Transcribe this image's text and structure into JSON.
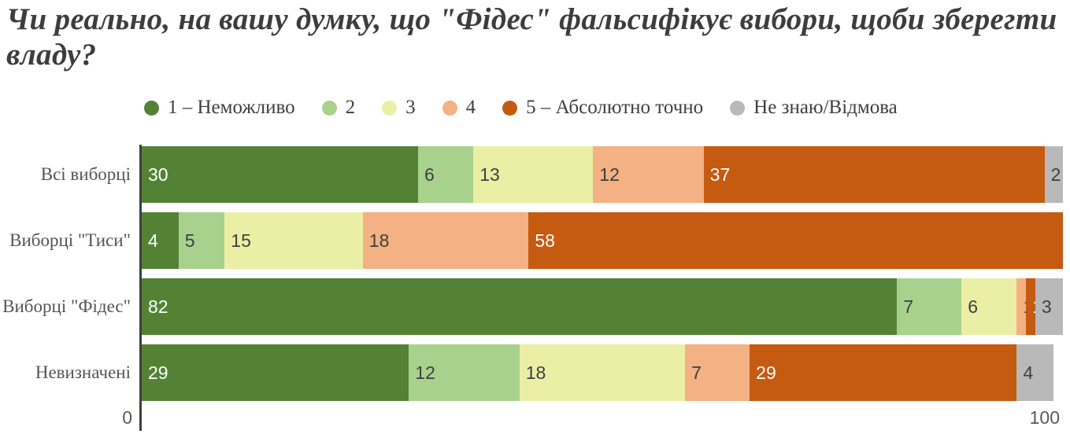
{
  "title": {
    "lines": [
      "Чи реально, на вашу думку, що \"Фідес\" фальсифікує вибори, щоби зберегти",
      "владу?"
    ]
  },
  "chart_data": {
    "type": "bar",
    "stacked": true,
    "orientation": "horizontal",
    "title": "Чи реально, на вашу думку, що \"Фідес\" фальсифікує вибори, щоби зберегти владу?",
    "xlabel": "",
    "ylabel": "",
    "xlim": [
      0,
      100
    ],
    "x_ticks": [
      "0",
      "100"
    ],
    "grid": false,
    "legend_position": "top",
    "categories": [
      "Всі виборці",
      "Виборці \"Тиси\"",
      "Виборці \"Фідес\"",
      "Невизначені"
    ],
    "series": [
      {
        "name": "1 – Неможливо",
        "color": "#548235",
        "label_color": "#ffffff",
        "values": [
          30,
          4,
          82,
          29
        ]
      },
      {
        "name": "2",
        "color": "#a9d18e",
        "label_color": "#3f3f3f",
        "values": [
          6,
          5,
          7,
          12
        ]
      },
      {
        "name": "3",
        "color": "#ebefa5",
        "label_color": "#3f3f3f",
        "values": [
          13,
          15,
          6,
          18
        ]
      },
      {
        "name": "4",
        "color": "#f4b183",
        "label_color": "#3f3f3f",
        "values": [
          12,
          18,
          1,
          7
        ]
      },
      {
        "name": "5 – Абсолютно точно",
        "color": "#c55a11",
        "label_color": "#ffffff",
        "values": [
          37,
          58,
          1,
          29
        ]
      },
      {
        "name": "Не знаю/Відмова",
        "color": "#b9b9b9",
        "label_color": "#3f3f3f",
        "values": [
          2,
          0,
          3,
          4
        ]
      }
    ]
  }
}
